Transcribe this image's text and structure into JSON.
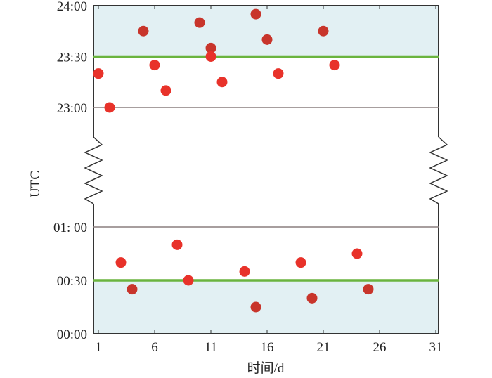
{
  "chart_data": {
    "type": "scatter",
    "title": "",
    "xlabel": "时间/d",
    "ylabel": "UTC",
    "xlim": [
      0.5,
      31.3
    ],
    "x_ticks": [
      1,
      6,
      11,
      16,
      21,
      26,
      31
    ],
    "x_tick_labels": [
      "1",
      "6",
      "11",
      "16",
      "21",
      "26",
      "31"
    ],
    "broken_axis": true,
    "upper_panel": {
      "ylim": [
        "23:00",
        "24:00"
      ],
      "y_tick_labels": [
        "23:00",
        "23:30",
        "24:00"
      ],
      "reference_line": "23:30",
      "shaded_range": [
        "23:30",
        "24:00"
      ],
      "points": [
        {
          "x": 1,
          "y": "23:20"
        },
        {
          "x": 2,
          "y": "23:00"
        },
        {
          "x": 5,
          "y": "23:45"
        },
        {
          "x": 6,
          "y": "23:25"
        },
        {
          "x": 7,
          "y": "23:10"
        },
        {
          "x": 10,
          "y": "23:50"
        },
        {
          "x": 11,
          "y": "23:35"
        },
        {
          "x": 11,
          "y": "23:30"
        },
        {
          "x": 12,
          "y": "23:15"
        },
        {
          "x": 15,
          "y": "23:55"
        },
        {
          "x": 16,
          "y": "23:40"
        },
        {
          "x": 17,
          "y": "23:20"
        },
        {
          "x": 21,
          "y": "23:45"
        },
        {
          "x": 22,
          "y": "23:25"
        }
      ]
    },
    "lower_panel": {
      "ylim": [
        "00:00",
        "01:00"
      ],
      "y_tick_labels": [
        "00:00",
        "00:30",
        "01:00"
      ],
      "reference_line": "00:30",
      "shaded_range": [
        "00:00",
        "00:30"
      ],
      "points": [
        {
          "x": 3,
          "y": "00:40"
        },
        {
          "x": 4,
          "y": "00:25"
        },
        {
          "x": 8,
          "y": "00:50"
        },
        {
          "x": 9,
          "y": "00:30"
        },
        {
          "x": 14,
          "y": "00:35"
        },
        {
          "x": 15,
          "y": "00:15"
        },
        {
          "x": 19,
          "y": "00:40"
        },
        {
          "x": 20,
          "y": "00:20"
        },
        {
          "x": 24,
          "y": "00:45"
        },
        {
          "x": 25,
          "y": "00:25"
        }
      ]
    },
    "grid": false
  },
  "colors": {
    "point_in_band": "#c8352b",
    "point_out_band": "#e8322a",
    "reference_line": "#6ab43e",
    "shade": "#e2f0f3",
    "frame": "#333333",
    "gridline": "#8a7f7f"
  }
}
